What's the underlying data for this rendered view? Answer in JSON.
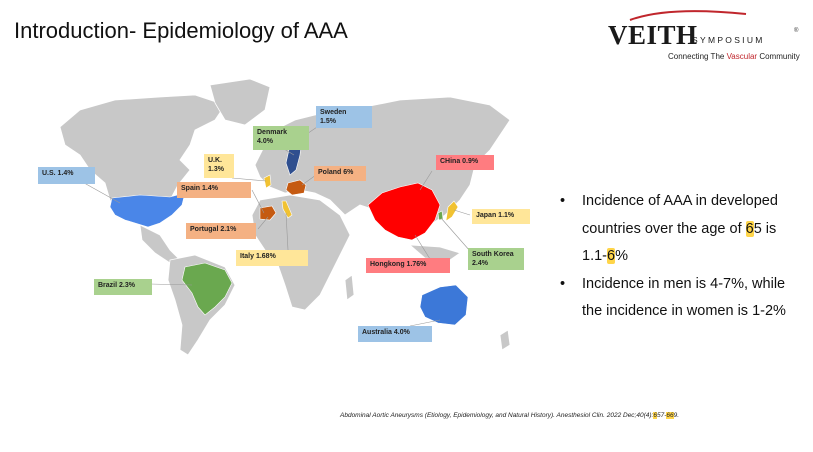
{
  "title": "Introduction- Epidemiology of AAA",
  "logo": {
    "main": "VEITH",
    "symposium": "SYMPOSIUM",
    "reg": "®",
    "tag_prefix": "Connecting The ",
    "tag_accent": "Vascular",
    "tag_suffix": " Community",
    "accent_color": "#c0262c"
  },
  "map_labels": [
    {
      "id": "us",
      "text": "U.S. 1.4%",
      "color": "#9dc3e6"
    },
    {
      "id": "uk",
      "text": "U.K.\n1.3%",
      "color": "#ffe699"
    },
    {
      "id": "denmark",
      "text": "Denmark\n4.0%",
      "color": "#a9d18e"
    },
    {
      "id": "sweden",
      "text": "Sweden\n1.5%",
      "color": "#9dc3e6"
    },
    {
      "id": "spain",
      "text": "Spain 1.4%",
      "color": "#f4b183"
    },
    {
      "id": "poland",
      "text": "Poland 6%",
      "color": "#f4b183"
    },
    {
      "id": "china",
      "text": "CHina 0.9%",
      "color": "#ff7c80"
    },
    {
      "id": "portugal",
      "text": "Portugal 2.1%",
      "color": "#f4b183"
    },
    {
      "id": "japan",
      "text": "Japan 1.1%",
      "color": "#ffe699"
    },
    {
      "id": "italy",
      "text": "Italy 1.68%",
      "color": "#ffe699"
    },
    {
      "id": "hongkong",
      "text": "Hongkong 1.76%",
      "color": "#ff7c80"
    },
    {
      "id": "southkorea",
      "text": "South Korea\n2.4%",
      "color": "#a9d18e"
    },
    {
      "id": "brazil",
      "text": "Brazil 2.3%",
      "color": "#a9d18e"
    },
    {
      "id": "australia",
      "text": "Australia 4.0%",
      "color": "#9dc3e6"
    }
  ],
  "country_colors": {
    "land": "#c8c8c8",
    "us": "#4a86e8",
    "brazil": "#6aa84f",
    "australia": "#3c78d8",
    "china": "#ff0000",
    "sweden": "#2f4f8f",
    "poland": "#c55a11",
    "spain": "#c55a11",
    "uk": "#f1c232",
    "italy": "#f1c232",
    "japan": "#f1c232",
    "korea": "#6aa84f"
  },
  "bullets": [
    {
      "bullet": "•",
      "parts": [
        "Incidence of AAA in developed countries over the age of ",
        "6",
        "5 is 1.1-",
        "6",
        "%"
      ]
    },
    {
      "bullet": "•",
      "parts": [
        "Incidence in men is 4-7%, while the incidence in women is 1-2%"
      ]
    }
  ],
  "citation": {
    "before": "Abdominal Aortic Aneurysms (Etiology, Epidemiology, and Natural History). Anesthesiol Clin. 2022 Dec;40(4):",
    "hl1": "6",
    "mid": "57-",
    "hl2": "66",
    "after": "9."
  }
}
